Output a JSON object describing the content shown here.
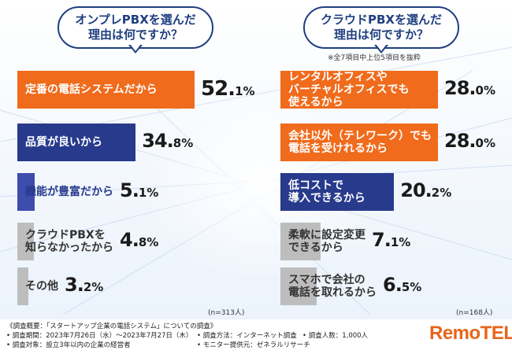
{
  "colors": {
    "orange": "#f06b1c",
    "navy": "#283a8c",
    "blue": "#3d4cad",
    "gray": "#bdbdbd",
    "text_dark": "#1a1a1a",
    "accent": "#1f3f80",
    "brand": "#e8651a"
  },
  "left_panel": {
    "question_line1": "オンプレPBXを選んだ",
    "question_line2": "理由は何ですか？",
    "n_note": "(n=313人)"
  },
  "right_panel": {
    "question_line1": "クラウドPBXを選んだ",
    "question_line2": "理由は何ですか？",
    "subnote": "※全7項目中上位5項目を抜粋",
    "n_note": "(n=168人)"
  },
  "chart_data": [
    {
      "type": "bar",
      "title": "オンプレPBXを選んだ理由は何ですか？",
      "unit": "%",
      "categories": [
        "定番の電話システムだから",
        "品質が良いから",
        "機能が豊富だから",
        "クラウドPBXを知らなかったから",
        "その他"
      ],
      "label_lines": [
        [
          "定番の電話システムだから"
        ],
        [
          "品質が良いから"
        ],
        [
          "機能が豊富だから"
        ],
        [
          "クラウドPBXを",
          "知らなかったから"
        ],
        [
          "その他"
        ]
      ],
      "values": [
        52.1,
        34.8,
        5.1,
        4.8,
        3.2
      ],
      "value_int": [
        "52.",
        "34.",
        "5.",
        "4.",
        "3."
      ],
      "value_dec": [
        "1%",
        "8%",
        "1%",
        "8%",
        "2%"
      ],
      "bar_colors": [
        "#f06b1c",
        "#283a8c",
        "#3d4cad",
        "#bdbdbd",
        "#bdbdbd"
      ],
      "label_colors": [
        "#ffffff",
        "#ffffff",
        "#283a8c",
        "#333333",
        "#333333"
      ],
      "n": "(n=313人)"
    },
    {
      "type": "bar",
      "title": "クラウドPBXを選んだ理由は何ですか？",
      "unit": "%",
      "categories": [
        "レンタルオフィスやバーチャルオフィスでも使えるから",
        "会社以外（テレワーク）でも電話を受けれるから",
        "低コストで導入できるから",
        "柔軟に設定変更できるから",
        "スマホで会社の電話を取れるから"
      ],
      "label_lines": [
        [
          "レンタルオフィスや",
          "バーチャルオフィスでも",
          "使えるから"
        ],
        [
          "会社以外（テレワーク）でも",
          "電話を受けれるから"
        ],
        [
          "低コストで",
          "導入できるから"
        ],
        [
          "柔軟に設定変更",
          "できるから"
        ],
        [
          "スマホで会社の",
          "電話を取れるから"
        ]
      ],
      "values": [
        28.0,
        28.0,
        20.2,
        7.1,
        6.5
      ],
      "value_int": [
        "28.",
        "28.",
        "20.",
        "7.",
        "6."
      ],
      "value_dec": [
        "0%",
        "0%",
        "2%",
        "1%",
        "5%"
      ],
      "bar_colors": [
        "#f06b1c",
        "#f06b1c",
        "#283a8c",
        "#bdbdbd",
        "#bdbdbd"
      ],
      "label_colors": [
        "#ffffff",
        "#ffffff",
        "#ffffff",
        "#333333",
        "#333333"
      ],
      "n": "(n=168人)"
    }
  ],
  "footer": {
    "line1": "《調査概要：「スタートアップ企業の電話システム」についての調査》",
    "period": "• 調査期間：2023年7月26日（水）〜2023年7月27日（木）",
    "method": "• 調査方法：インターネット調査",
    "count": "• 調査人数：1,000人",
    "target": "• 調査対象：設立3年以内の企業の経営者",
    "monitor": "• モニター提供元：ゼネラルリサーチ",
    "logo": "RemoTEL"
  }
}
